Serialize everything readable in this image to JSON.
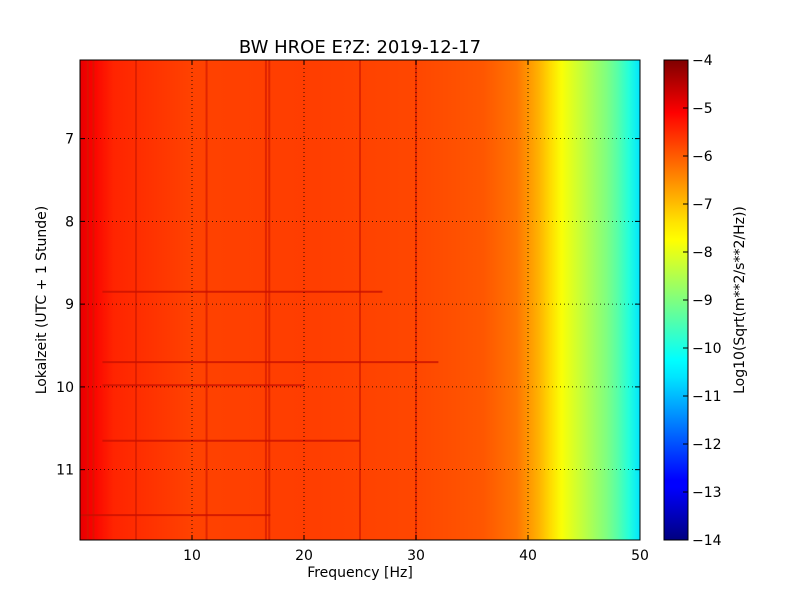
{
  "chart_data": {
    "type": "heatmap",
    "title": "BW HROE E?Z: 2019-12-17",
    "xlabel": "Frequency [Hz]",
    "ylabel": "Lokalzeit (UTC + 1 Stunde)",
    "xlim": [
      0,
      50
    ],
    "ylim": [
      11.85,
      6.05
    ],
    "x_ticks": [
      10,
      20,
      30,
      40,
      50
    ],
    "y_ticks": [
      7,
      8,
      9,
      10,
      11
    ],
    "grid": true,
    "colormap": "jet",
    "colorbar": {
      "label": "Log10(Sqrt(m**2/s**2/Hz))",
      "min": -14,
      "max": -4,
      "ticks": [
        -4,
        -5,
        -6,
        -7,
        -8,
        -9,
        -10,
        -11,
        -12,
        -13,
        -14
      ]
    },
    "spectral_profile": {
      "freq_hz": [
        0,
        1,
        3,
        10,
        20,
        30,
        36,
        39,
        40,
        41,
        42,
        43,
        44,
        45,
        46,
        47,
        48,
        49,
        50
      ],
      "log10_amplitude": [
        -5.0,
        -5.2,
        -5.6,
        -5.9,
        -5.85,
        -5.95,
        -6.1,
        -6.4,
        -6.7,
        -7.0,
        -7.4,
        -7.8,
        -8.1,
        -8.4,
        -8.7,
        -9.0,
        -9.4,
        -9.9,
        -10.5
      ]
    },
    "vertical_lines_hz": [
      0.7,
      1.2,
      5.0,
      11.3,
      16.6,
      16.9,
      25.0,
      30.0
    ],
    "horizontal_bands": [
      {
        "time_h": 8.85,
        "freq_range_hz": [
          2,
          27
        ]
      },
      {
        "time_h": 9.7,
        "freq_range_hz": [
          2,
          32
        ]
      },
      {
        "time_h": 9.98,
        "freq_range_hz": [
          2,
          20
        ]
      },
      {
        "time_h": 10.65,
        "freq_range_hz": [
          2,
          25
        ]
      },
      {
        "time_h": 11.55,
        "freq_range_hz": [
          0,
          17
        ]
      }
    ]
  }
}
